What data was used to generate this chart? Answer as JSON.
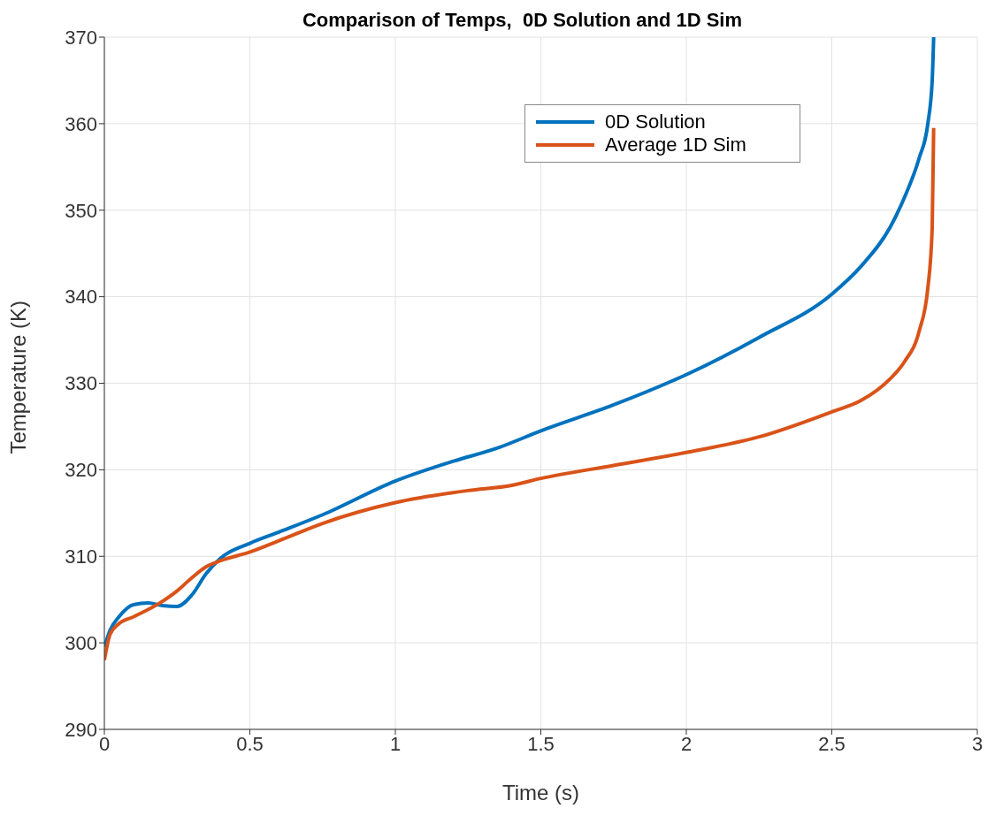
{
  "chart_data": {
    "type": "line",
    "title": "Comparison of Temps,  0D Solution and 1D Sim",
    "xlabel": "Time (s)",
    "ylabel": "Temperature (K)",
    "series": [
      {
        "name": "0D Solution",
        "color": "#0072bd",
        "x": [
          0,
          0.02,
          0.05,
          0.1,
          0.15,
          0.2,
          0.25,
          0.3,
          0.35,
          0.4,
          0.5,
          0.6,
          0.75,
          1.0,
          1.2,
          1.35,
          1.5,
          1.75,
          2.0,
          2.25,
          2.5,
          2.6,
          2.7,
          2.75,
          2.8,
          2.83,
          2.845,
          2.85
        ],
        "values": [
          299.5,
          301.5,
          303,
          304.4,
          304.6,
          304.3,
          304.2,
          305.5,
          308,
          309.8,
          311.5,
          312.8,
          314.8,
          318.7,
          321,
          322.5,
          324.5,
          327.5,
          331,
          335.3,
          340.3,
          343.5,
          348,
          351.5,
          356,
          360,
          365,
          370
        ]
      },
      {
        "name": "Average 1D Sim",
        "color": "#d95319",
        "x": [
          0,
          0.02,
          0.05,
          0.1,
          0.2,
          0.25,
          0.3,
          0.35,
          0.4,
          0.5,
          0.6,
          0.75,
          1.0,
          1.25,
          1.4,
          1.5,
          1.75,
          2.0,
          2.25,
          2.5,
          2.6,
          2.7,
          2.75,
          2.8,
          2.83,
          2.845,
          2.85
        ],
        "values": [
          298,
          301,
          302.2,
          303,
          304.8,
          306,
          307.5,
          308.8,
          309.5,
          310.5,
          311.8,
          313.8,
          316.2,
          317.6,
          318.2,
          319,
          320.5,
          322,
          323.8,
          326.7,
          328,
          330.5,
          332.5,
          336,
          341,
          348,
          359.5
        ]
      }
    ],
    "xlim": [
      0,
      3
    ],
    "xticks": [
      0,
      0.5,
      1,
      1.5,
      2,
      2.5,
      3
    ],
    "ylim": [
      290,
      370
    ],
    "yticks": [
      290,
      300,
      310,
      320,
      330,
      340,
      350,
      360,
      370
    ],
    "grid": true,
    "legend": "top right",
    "line_style": "solid"
  }
}
